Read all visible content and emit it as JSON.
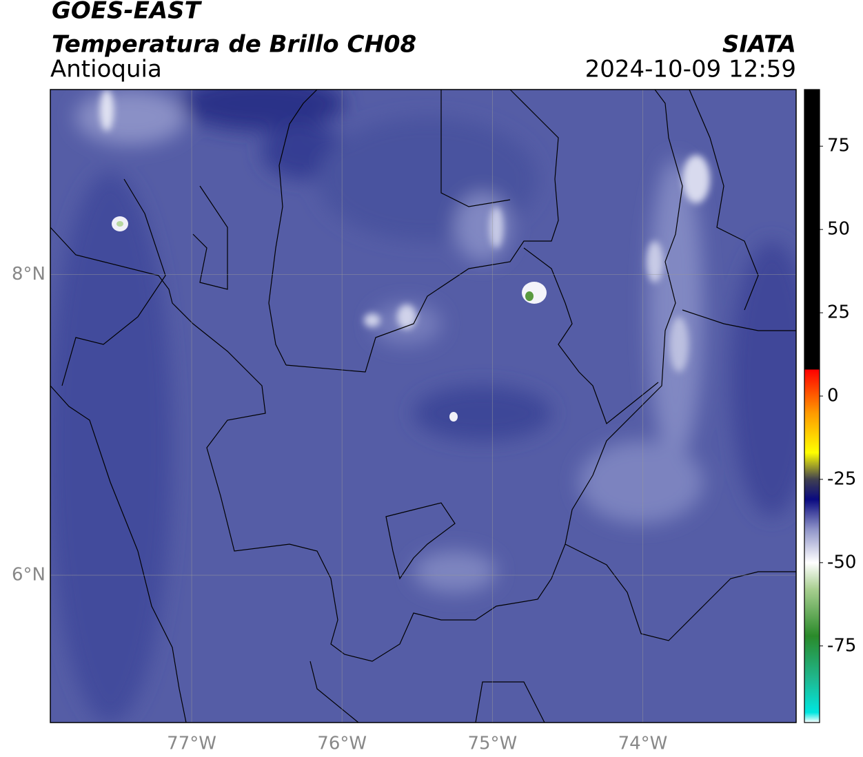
{
  "map": {
    "title": "GOES-EAST",
    "subtitle": "Temperatura de Brillo CH08",
    "region": "Antioquia",
    "source": "SIATA",
    "timestamp": "2024-10-09 12:59",
    "xlim": [
      -77.94,
      -72.98
    ],
    "ylim": [
      5.02,
      9.23
    ],
    "xticks": [
      {
        "value": -77,
        "label": "77°W"
      },
      {
        "value": -76,
        "label": "76°W"
      },
      {
        "value": -75,
        "label": "75°W"
      },
      {
        "value": -74,
        "label": "74°W"
      }
    ],
    "yticks": [
      {
        "value": 8,
        "label": "8°N"
      },
      {
        "value": 6,
        "label": "6°N"
      }
    ],
    "grid": true,
    "colorbar": {
      "lim": [
        -98,
        92
      ],
      "ticks": [
        75,
        50,
        25,
        0,
        -25,
        -50,
        -75
      ],
      "stops": [
        {
          "value": -98,
          "color": "#ffffff"
        },
        {
          "value": -95,
          "color": "#00e6e0"
        },
        {
          "value": -85,
          "color": "#1fb890"
        },
        {
          "value": -72,
          "color": "#2a8a2a"
        },
        {
          "value": -58,
          "color": "#a8cf90"
        },
        {
          "value": -50,
          "color": "#ffffff"
        },
        {
          "value": -40,
          "color": "#8f94c8"
        },
        {
          "value": -31,
          "color": "#0a0a80"
        },
        {
          "value": -25,
          "color": "#404050"
        },
        {
          "value": -17,
          "color": "#ffff00"
        },
        {
          "value": -5,
          "color": "#ff9900"
        },
        {
          "value": 8,
          "color": "#ff0000"
        },
        {
          "value": 8.01,
          "color": "#000000"
        },
        {
          "value": 92,
          "color": "#000000"
        }
      ]
    }
  }
}
